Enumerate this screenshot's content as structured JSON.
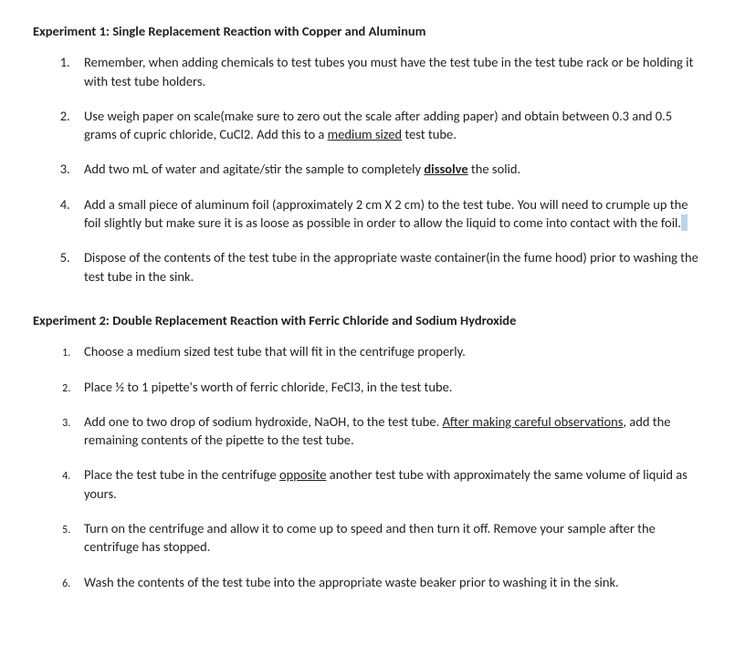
{
  "experiment1": {
    "title": "Experiment 1:  Single Replacement Reaction with Copper and Aluminum",
    "steps": {
      "s1": "Remember, when adding chemicals to test tubes you must have the test tube in the test tube rack or be holding it with test tube holders.",
      "s2a": "Use weigh paper on scale(make sure to zero out the scale after adding paper) and obtain between 0.3 and 0.5 grams of cupric chloride, CuCl2. Add this to a ",
      "s2u": "medium sized",
      "s2b": " test tube.",
      "s3a": "Add two mL of water and agitate/stir the sample to completely ",
      "s3u": "dissolve",
      "s3b": " the solid.",
      "s4a": "Add a small piece of aluminum foil (approximately 2 cm X 2 cm) to the test tube.  You will need to crumple up the foil slightly but make sure it is as loose as possible in order to allow the liquid to come into contact with the foil.",
      "s5": "Dispose of the contents of the test tube in the appropriate waste container(in the fume hood) prior to washing the test tube in the sink."
    }
  },
  "experiment2": {
    "title": "Experiment 2:  Double Replacement Reaction with Ferric Chloride and Sodium Hydroxide",
    "steps": {
      "s1": "Choose a medium sized test tube that will fit in the centrifuge properly.",
      "s2": "Place ½ to 1 pipette's worth of ferric chloride, FeCl3, in the test tube.",
      "s3a": "Add one to two drop of sodium hydroxide, NaOH, to the test tube.  ",
      "s3u": "After making careful observations",
      "s3b": ", add the remaining contents of the pipette to the test tube.",
      "s4a": "Place the test tube in the centrifuge ",
      "s4u": "opposite",
      "s4b": " another test tube with approximately the same volume of liquid as yours.",
      "s5": "Turn on the centrifuge and allow it to come up to speed and then turn it off.  Remove your sample after the centrifuge has stopped.",
      "s6": "Wash the contents of the test tube into the appropriate waste beaker prior to washing it in the sink."
    }
  }
}
